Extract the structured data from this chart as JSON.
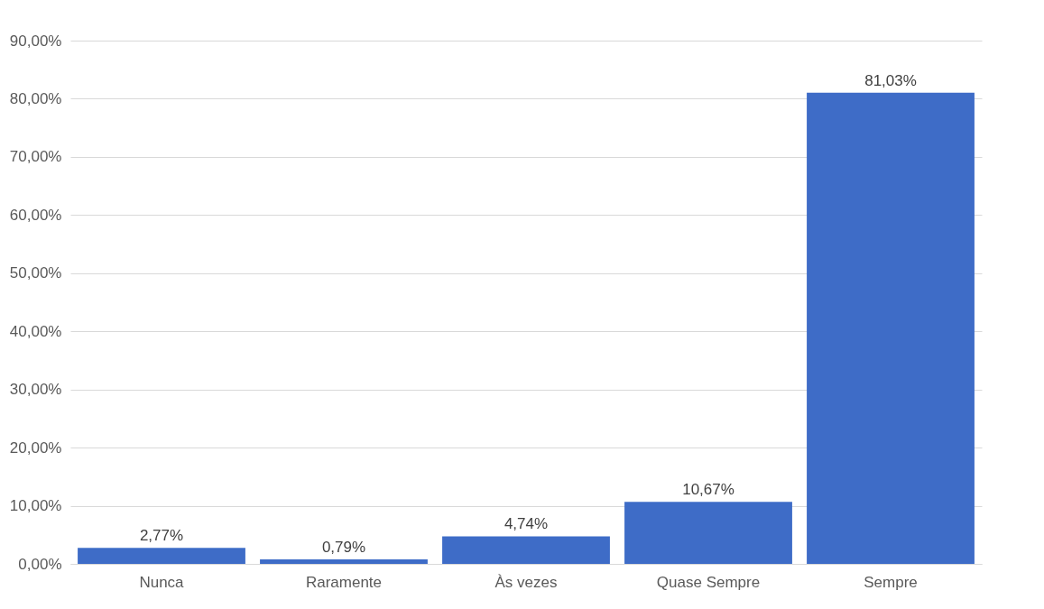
{
  "chart_data": {
    "type": "bar",
    "categories": [
      "Nunca",
      "Raramente",
      "Às vezes",
      "Quase Sempre",
      "Sempre"
    ],
    "values": [
      2.77,
      0.79,
      4.74,
      10.67,
      81.03
    ],
    "value_labels": [
      "2,77%",
      "0,79%",
      "4,74%",
      "10,67%",
      "81,03%"
    ],
    "color": "#3e6cc7",
    "ylim": [
      0,
      90
    ],
    "yticks": [
      {
        "value": 0,
        "label": "0,00%"
      },
      {
        "value": 10,
        "label": "10,00%"
      },
      {
        "value": 20,
        "label": "20,00%"
      },
      {
        "value": 30,
        "label": "30,00%"
      },
      {
        "value": 40,
        "label": "40,00%"
      },
      {
        "value": 50,
        "label": "50,00%"
      },
      {
        "value": 60,
        "label": "60,00%"
      },
      {
        "value": 70,
        "label": "70,00%"
      },
      {
        "value": 80,
        "label": "80,00%"
      },
      {
        "value": 90,
        "label": "90,00%"
      }
    ],
    "grid": "y"
  }
}
